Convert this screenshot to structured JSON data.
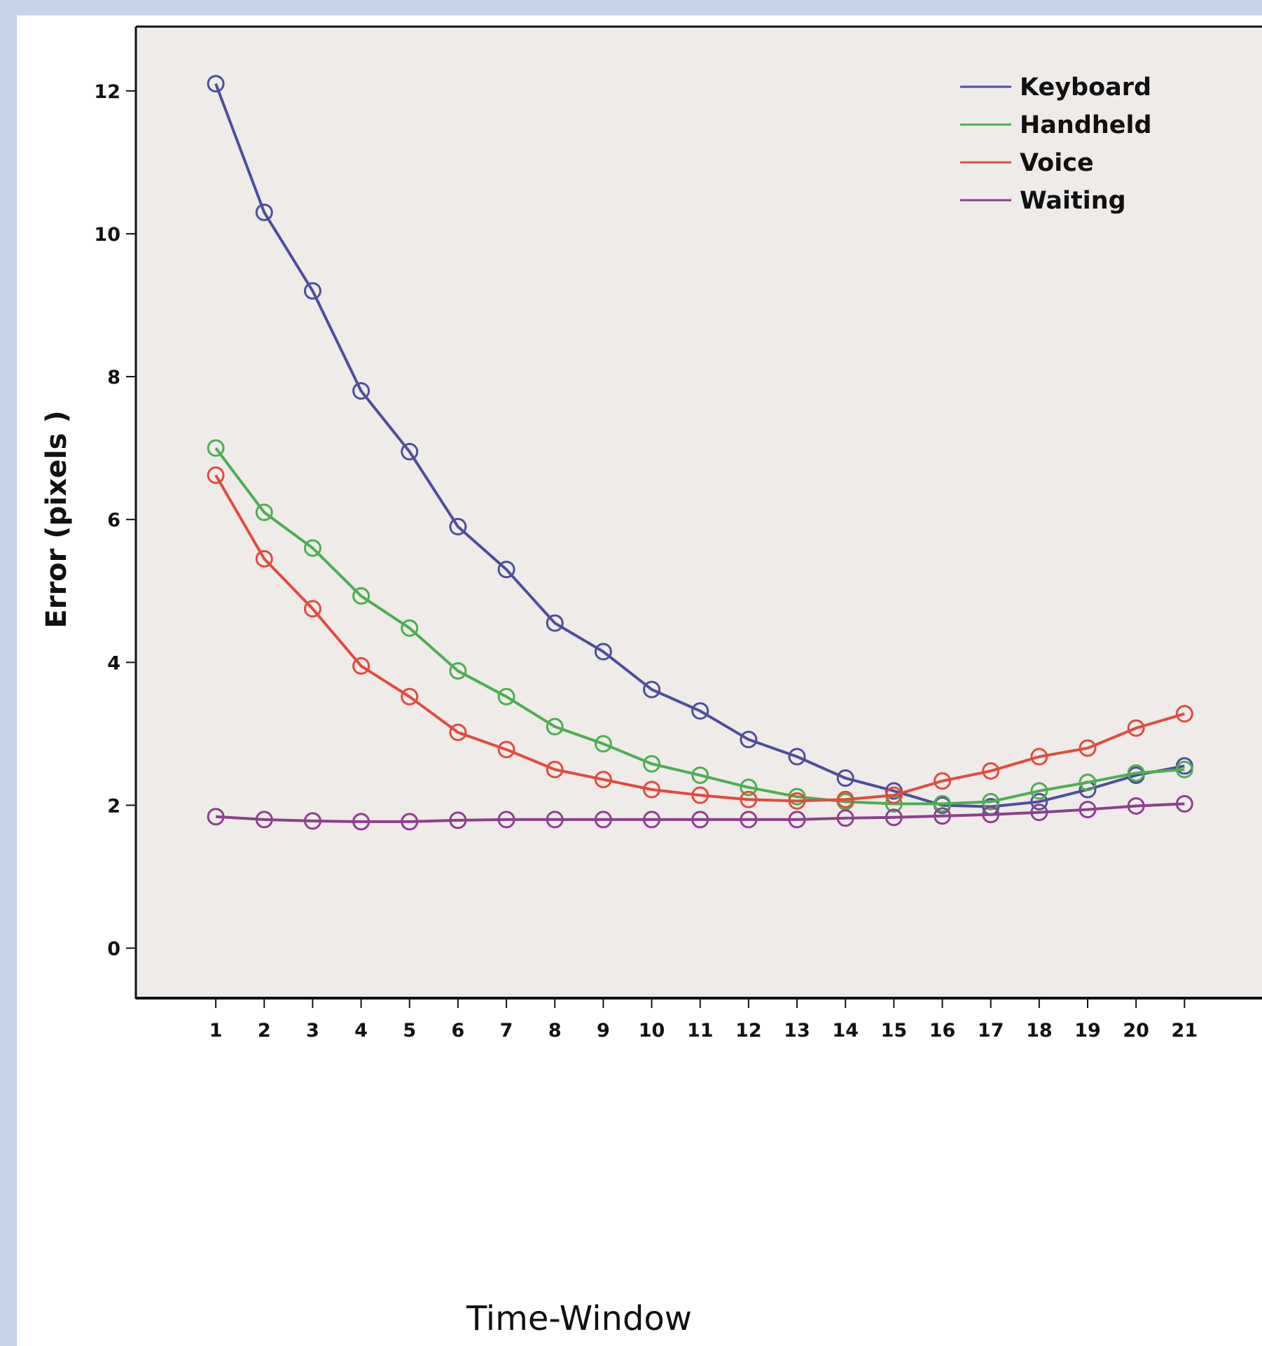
{
  "chart_data": {
    "type": "line",
    "title": "",
    "xlabel": "Time-Window",
    "ylabel": "Error (pixels )",
    "x": [
      1,
      2,
      3,
      4,
      5,
      6,
      7,
      8,
      9,
      10,
      11,
      12,
      13,
      14,
      15,
      16,
      17,
      18,
      19,
      20,
      21
    ],
    "xlim": [
      -0.65,
      22.6
    ],
    "ylim": [
      -0.7,
      12.9
    ],
    "yticks": [
      0,
      2,
      4,
      6,
      8,
      10,
      12
    ],
    "grid": false,
    "legend_position": "top-right",
    "marker": "open-circle",
    "series": [
      {
        "name": "Keyboard",
        "color": "#4e4e9e",
        "values": [
          12.1,
          10.3,
          9.2,
          7.8,
          6.95,
          5.9,
          5.3,
          4.55,
          4.15,
          3.62,
          3.32,
          2.92,
          2.68,
          2.38,
          2.2,
          2.0,
          1.98,
          2.05,
          2.22,
          2.42,
          2.55
        ]
      },
      {
        "name": "Handheld",
        "color": "#4caf50",
        "values": [
          7.0,
          6.1,
          5.6,
          4.93,
          4.48,
          3.88,
          3.52,
          3.1,
          2.86,
          2.58,
          2.42,
          2.25,
          2.12,
          2.05,
          2.02,
          2.02,
          2.05,
          2.2,
          2.32,
          2.45,
          2.5
        ]
      },
      {
        "name": "Voice",
        "color": "#e24b3c",
        "values": [
          6.62,
          5.45,
          4.75,
          3.95,
          3.52,
          3.02,
          2.78,
          2.5,
          2.36,
          2.22,
          2.14,
          2.08,
          2.06,
          2.08,
          2.14,
          2.34,
          2.48,
          2.68,
          2.8,
          3.08,
          3.28
        ]
      },
      {
        "name": "Waiting",
        "color": "#8e3f8e",
        "values": [
          1.84,
          1.8,
          1.78,
          1.77,
          1.77,
          1.79,
          1.8,
          1.8,
          1.8,
          1.8,
          1.8,
          1.8,
          1.8,
          1.82,
          1.83,
          1.85,
          1.87,
          1.9,
          1.94,
          1.99,
          2.02
        ]
      }
    ]
  }
}
